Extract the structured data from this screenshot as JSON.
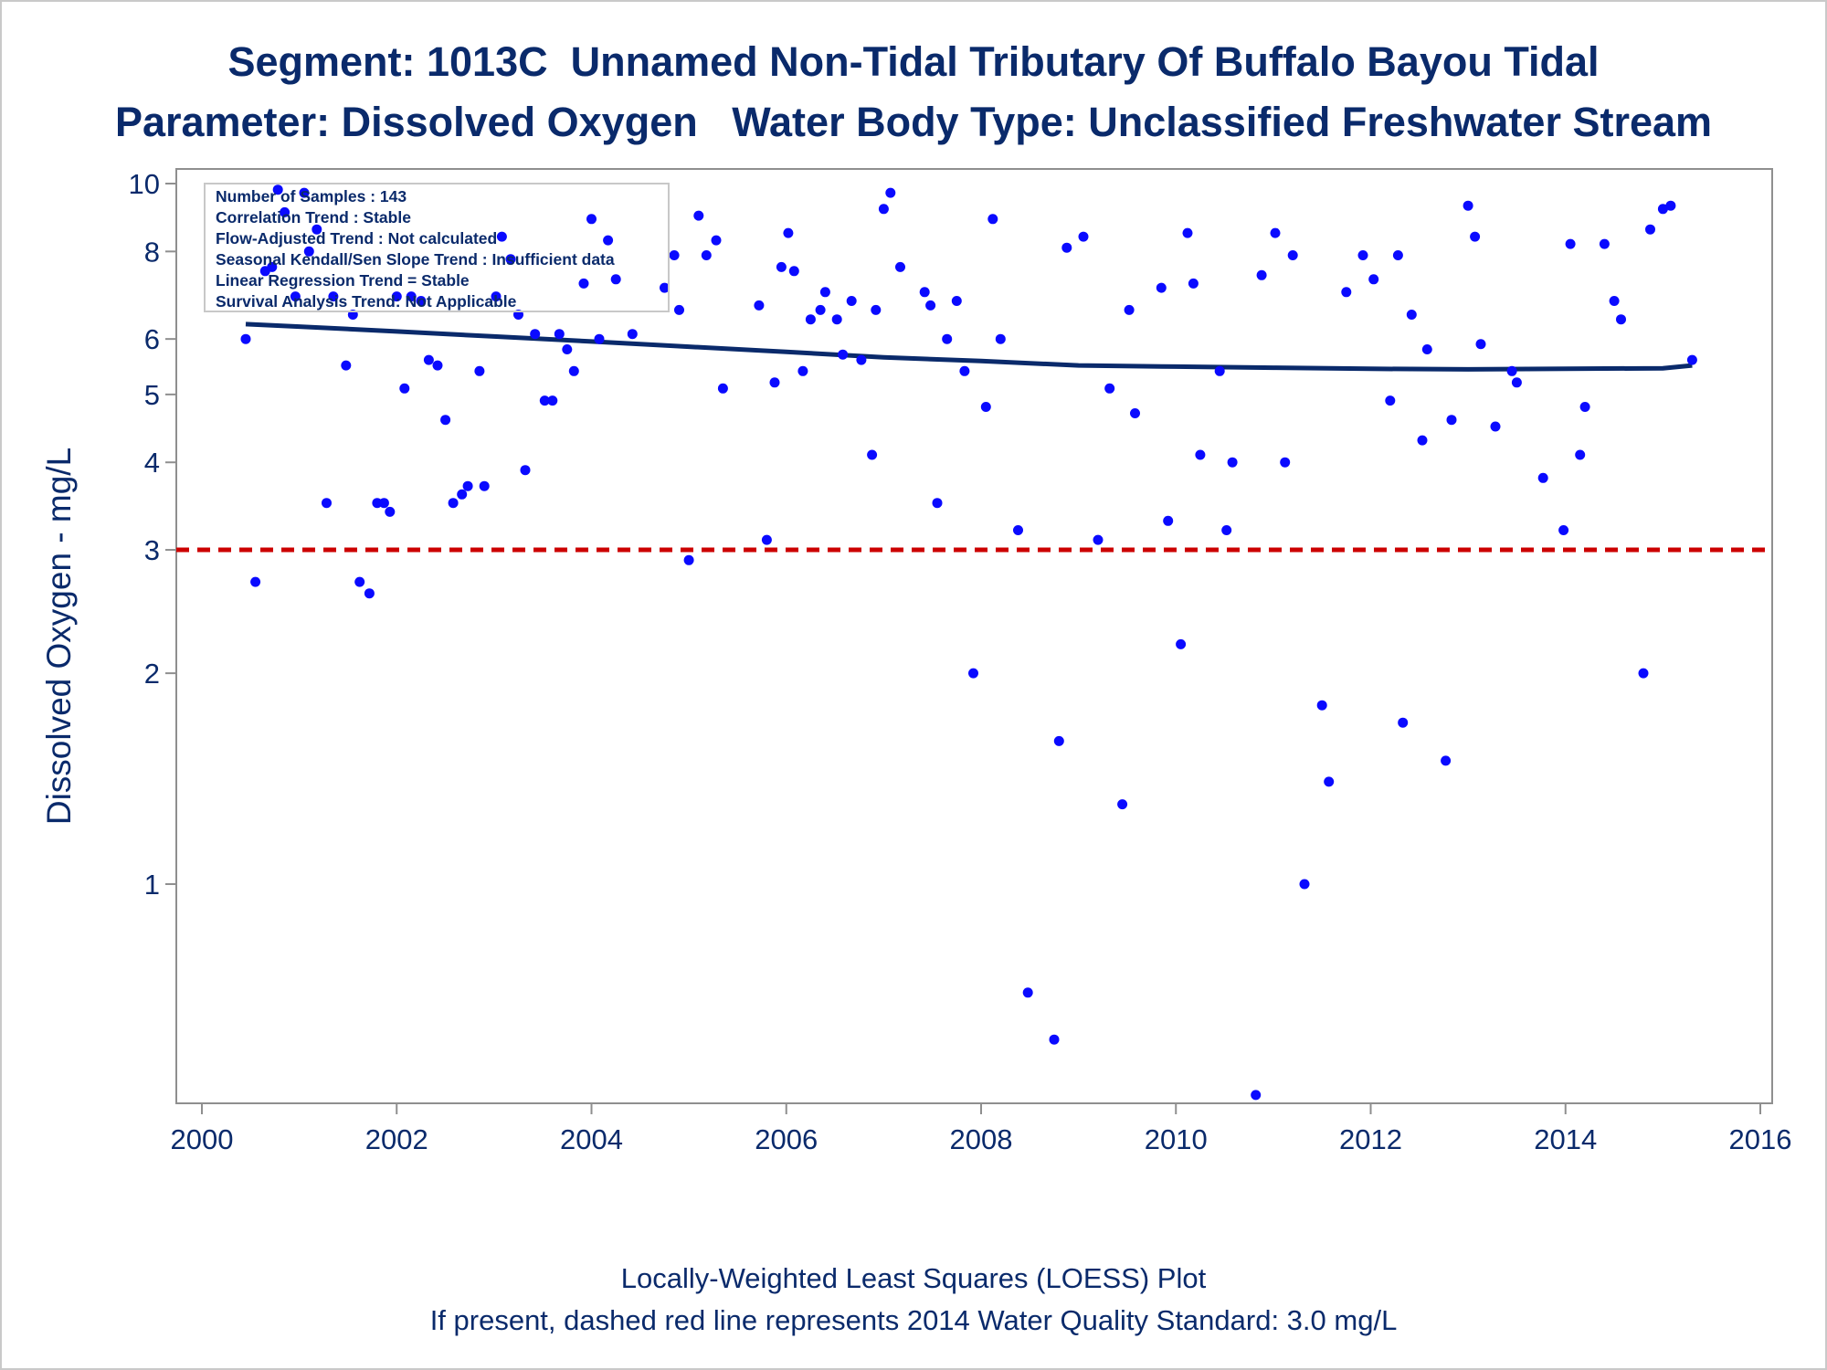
{
  "header": {
    "title_line1": "Segment: 1013C  Unnamed Non-Tidal Tributary Of Buffalo Bayou Tidal",
    "title_line2": "Parameter: Dissolved Oxygen   Water Body Type: Unclassified Freshwater Stream"
  },
  "footer": {
    "line1": "Locally-Weighted Least Squares (LOESS) Plot",
    "line2": "If present, dashed red line represents 2014 Water Quality Standard: 3.0 mg/L"
  },
  "colors": {
    "text": "#0a2a6b",
    "points": "#0a0aff",
    "loess": "#0a2a6b",
    "standard_line": "#cc0000",
    "axis": "#8f8f8f"
  },
  "chart_data": {
    "type": "scatter",
    "title": "Segment: 1013C  Unnamed Non-Tidal Tributary Of Buffalo Bayou Tidal",
    "subtitle": "Parameter: Dissolved Oxygen   Water Body Type: Unclassified Freshwater Stream",
    "xlabel": "",
    "ylabel": "Dissolved Oxygen - mg/L",
    "xlim": [
      2000,
      2016
    ],
    "ylim": [
      0.5,
      10
    ],
    "y_scale": "log",
    "grid": false,
    "x_ticks": [
      "2000",
      "2002",
      "2004",
      "2006",
      "2008",
      "2010",
      "2012",
      "2014",
      "2016"
    ],
    "y_ticks": [
      "1",
      "2",
      "3",
      "4",
      "5",
      "6",
      "8",
      "10"
    ],
    "y_tick_values": [
      1,
      2,
      3,
      4,
      5,
      6,
      8,
      10
    ],
    "legend": {
      "placement": "top-left",
      "entries": [
        "Number of Samples : 143",
        "Correlation Trend : Stable",
        "Flow-Adjusted Trend : Not calculated",
        "Seasonal Kendall/Sen Slope Trend : Insufficient data",
        "Linear Regression Trend = Stable",
        "Survival Analysis Trend: Not Applicable"
      ]
    },
    "standard_line": {
      "y": 3.0,
      "style": "dashed"
    },
    "loess": [
      [
        2000.45,
        6.3
      ],
      [
        2001.0,
        6.25
      ],
      [
        2002.0,
        6.15
      ],
      [
        2003.0,
        6.05
      ],
      [
        2004.0,
        5.95
      ],
      [
        2005.0,
        5.85
      ],
      [
        2006.0,
        5.75
      ],
      [
        2007.0,
        5.65
      ],
      [
        2008.0,
        5.58
      ],
      [
        2009.0,
        5.5
      ],
      [
        2010.0,
        5.48
      ],
      [
        2011.0,
        5.46
      ],
      [
        2012.0,
        5.44
      ],
      [
        2013.0,
        5.43
      ],
      [
        2014.0,
        5.44
      ],
      [
        2015.0,
        5.45
      ],
      [
        2015.3,
        5.5
      ]
    ],
    "points": [
      [
        2000.45,
        6.0
      ],
      [
        2000.55,
        2.7
      ],
      [
        2000.65,
        7.5
      ],
      [
        2000.72,
        7.6
      ],
      [
        2000.78,
        9.8
      ],
      [
        2000.85,
        9.1
      ],
      [
        2000.96,
        6.9
      ],
      [
        2001.05,
        9.7
      ],
      [
        2001.1,
        8.0
      ],
      [
        2001.18,
        8.6
      ],
      [
        2001.28,
        3.5
      ],
      [
        2001.35,
        6.9
      ],
      [
        2001.48,
        5.5
      ],
      [
        2001.55,
        6.5
      ],
      [
        2001.62,
        2.7
      ],
      [
        2001.72,
        2.6
      ],
      [
        2001.8,
        3.5
      ],
      [
        2001.87,
        3.5
      ],
      [
        2001.93,
        3.4
      ],
      [
        2002.0,
        6.9
      ],
      [
        2002.08,
        5.1
      ],
      [
        2002.15,
        6.9
      ],
      [
        2002.25,
        6.8
      ],
      [
        2002.33,
        5.6
      ],
      [
        2002.42,
        5.5
      ],
      [
        2002.5,
        4.6
      ],
      [
        2002.58,
        3.5
      ],
      [
        2002.67,
        3.6
      ],
      [
        2002.73,
        3.7
      ],
      [
        2002.85,
        5.4
      ],
      [
        2002.9,
        3.7
      ],
      [
        2003.02,
        6.9
      ],
      [
        2003.08,
        8.4
      ],
      [
        2003.17,
        7.8
      ],
      [
        2003.25,
        6.5
      ],
      [
        2003.32,
        3.9
      ],
      [
        2003.42,
        6.1
      ],
      [
        2003.52,
        4.9
      ],
      [
        2003.6,
        4.9
      ],
      [
        2003.67,
        6.1
      ],
      [
        2003.75,
        5.8
      ],
      [
        2003.82,
        5.4
      ],
      [
        2003.92,
        7.2
      ],
      [
        2004.0,
        8.9
      ],
      [
        2004.08,
        6.0
      ],
      [
        2004.17,
        8.3
      ],
      [
        2004.25,
        7.3
      ],
      [
        2004.42,
        6.1
      ],
      [
        2004.75,
        7.1
      ],
      [
        2004.85,
        7.9
      ],
      [
        2004.9,
        6.6
      ],
      [
        2005.0,
        2.9
      ],
      [
        2005.1,
        9.0
      ],
      [
        2005.18,
        7.9
      ],
      [
        2005.28,
        8.3
      ],
      [
        2005.35,
        5.1
      ],
      [
        2005.72,
        6.7
      ],
      [
        2005.8,
        3.1
      ],
      [
        2005.88,
        5.2
      ],
      [
        2005.95,
        7.6
      ],
      [
        2006.02,
        8.5
      ],
      [
        2006.08,
        7.5
      ],
      [
        2006.17,
        5.4
      ],
      [
        2006.25,
        6.4
      ],
      [
        2006.35,
        6.6
      ],
      [
        2006.4,
        7.0
      ],
      [
        2006.52,
        6.4
      ],
      [
        2006.58,
        5.7
      ],
      [
        2006.67,
        6.8
      ],
      [
        2006.77,
        5.6
      ],
      [
        2006.88,
        4.1
      ],
      [
        2006.92,
        6.6
      ],
      [
        2007.0,
        9.2
      ],
      [
        2007.07,
        9.7
      ],
      [
        2007.17,
        7.6
      ],
      [
        2007.42,
        7.0
      ],
      [
        2007.48,
        6.7
      ],
      [
        2007.55,
        3.5
      ],
      [
        2007.65,
        6.0
      ],
      [
        2007.75,
        6.8
      ],
      [
        2007.83,
        5.4
      ],
      [
        2007.92,
        2.0
      ],
      [
        2008.05,
        4.8
      ],
      [
        2008.12,
        8.9
      ],
      [
        2008.2,
        6.0
      ],
      [
        2008.38,
        3.2
      ],
      [
        2008.48,
        0.7
      ],
      [
        2008.75,
        0.6
      ],
      [
        2008.8,
        1.6
      ],
      [
        2008.88,
        8.1
      ],
      [
        2009.05,
        8.4
      ],
      [
        2009.2,
        3.1
      ],
      [
        2009.32,
        5.1
      ],
      [
        2009.45,
        1.3
      ],
      [
        2009.52,
        6.6
      ],
      [
        2009.58,
        4.7
      ],
      [
        2009.85,
        7.1
      ],
      [
        2009.92,
        3.3
      ],
      [
        2010.05,
        2.2
      ],
      [
        2010.12,
        8.5
      ],
      [
        2010.18,
        7.2
      ],
      [
        2010.25,
        4.1
      ],
      [
        2010.45,
        5.4
      ],
      [
        2010.52,
        3.2
      ],
      [
        2010.58,
        4.0
      ],
      [
        2010.82,
        0.5
      ],
      [
        2010.88,
        7.4
      ],
      [
        2011.02,
        8.5
      ],
      [
        2011.12,
        4.0
      ],
      [
        2011.2,
        7.9
      ],
      [
        2011.32,
        1.0
      ],
      [
        2011.5,
        1.8
      ],
      [
        2011.57,
        1.4
      ],
      [
        2011.75,
        7.0
      ],
      [
        2011.92,
        7.9
      ],
      [
        2012.03,
        7.3
      ],
      [
        2012.2,
        4.9
      ],
      [
        2012.28,
        7.9
      ],
      [
        2012.33,
        1.7
      ],
      [
        2012.42,
        6.5
      ],
      [
        2012.53,
        4.3
      ],
      [
        2012.58,
        5.8
      ],
      [
        2012.77,
        1.5
      ],
      [
        2012.83,
        4.6
      ],
      [
        2013.0,
        9.3
      ],
      [
        2013.07,
        8.4
      ],
      [
        2013.13,
        5.9
      ],
      [
        2013.28,
        4.5
      ],
      [
        2013.45,
        5.4
      ],
      [
        2013.5,
        5.2
      ],
      [
        2013.77,
        3.8
      ],
      [
        2013.98,
        3.2
      ],
      [
        2014.05,
        8.2
      ],
      [
        2014.15,
        4.1
      ],
      [
        2014.2,
        4.8
      ],
      [
        2014.4,
        8.2
      ],
      [
        2014.5,
        6.8
      ],
      [
        2014.57,
        6.4
      ],
      [
        2014.8,
        2.0
      ],
      [
        2014.87,
        8.6
      ],
      [
        2015.0,
        9.2
      ],
      [
        2015.08,
        9.3
      ],
      [
        2015.3,
        5.6
      ]
    ]
  }
}
